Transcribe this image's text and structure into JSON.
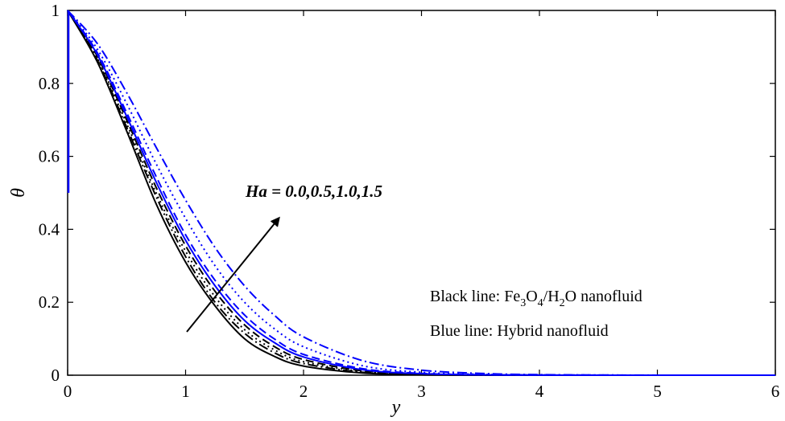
{
  "chart_data": {
    "type": "line",
    "xlabel": "y",
    "ylabel": "θ",
    "xlim": [
      0,
      6
    ],
    "ylim": [
      0,
      1
    ],
    "x_ticks": [
      "0",
      "1",
      "2",
      "3",
      "4",
      "5",
      "6"
    ],
    "y_ticks": [
      "0",
      "0.2",
      "0.4",
      "0.6",
      "0.8",
      "1"
    ],
    "grid": false,
    "annotations": {
      "ha": "Ha = 0.0,0.5,1.0,1.5",
      "black_prefix": "Black line: Fe",
      "black_sub1": "3",
      "black_mid1": "O",
      "black_sub2": "4",
      "black_mid2": "/H",
      "black_sub3": "2",
      "black_suffix": "O nanofluid",
      "blue": "Blue line: Hybrid nanofluid"
    },
    "x": [
      0,
      0.25,
      0.5,
      0.75,
      1,
      1.25,
      1.5,
      1.75,
      2,
      2.5,
      3,
      3.5,
      4,
      5,
      6
    ],
    "series": [
      {
        "color": "#000000",
        "style": "solid",
        "values": [
          1,
          0.86,
          0.67,
          0.47,
          0.31,
          0.19,
          0.1,
          0.052,
          0.025,
          0.006,
          0.001,
          0.0003,
          0,
          0,
          0
        ]
      },
      {
        "color": "#000000",
        "style": "dashdot",
        "values": [
          1,
          0.865,
          0.68,
          0.49,
          0.325,
          0.2,
          0.115,
          0.062,
          0.032,
          0.008,
          0.002,
          0.0005,
          0.0001,
          0,
          0
        ]
      },
      {
        "color": "#000000",
        "style": "dotted",
        "values": [
          1,
          0.87,
          0.69,
          0.5,
          0.34,
          0.215,
          0.125,
          0.07,
          0.037,
          0.01,
          0.003,
          0.0007,
          0.0002,
          0,
          0
        ]
      },
      {
        "color": "#000000",
        "style": "dashed",
        "values": [
          1,
          0.875,
          0.7,
          0.515,
          0.355,
          0.23,
          0.138,
          0.079,
          0.043,
          0.012,
          0.003,
          0.0008,
          0.0002,
          0,
          0
        ]
      },
      {
        "color": "#0000ff",
        "style": "solid",
        "values": [
          1,
          0.88,
          0.71,
          0.53,
          0.37,
          0.245,
          0.15,
          0.09,
          0.05,
          0.015,
          0.004,
          0.001,
          0.0003,
          0,
          0
        ]
      },
      {
        "color": "#0000ff",
        "style": "dashed",
        "values": [
          1,
          0.885,
          0.72,
          0.545,
          0.385,
          0.26,
          0.165,
          0.1,
          0.057,
          0.018,
          0.005,
          0.0013,
          0.0004,
          0,
          0
        ]
      },
      {
        "color": "#0000ff",
        "style": "dotted",
        "values": [
          1,
          0.895,
          0.745,
          0.58,
          0.43,
          0.3,
          0.2,
          0.128,
          0.078,
          0.026,
          0.008,
          0.0025,
          0.0008,
          0,
          0
        ]
      },
      {
        "color": "#0000ff",
        "style": "dashdot",
        "values": [
          1,
          0.91,
          0.775,
          0.625,
          0.48,
          0.35,
          0.245,
          0.165,
          0.105,
          0.04,
          0.014,
          0.005,
          0.0015,
          0.0001,
          0
        ]
      }
    ]
  }
}
